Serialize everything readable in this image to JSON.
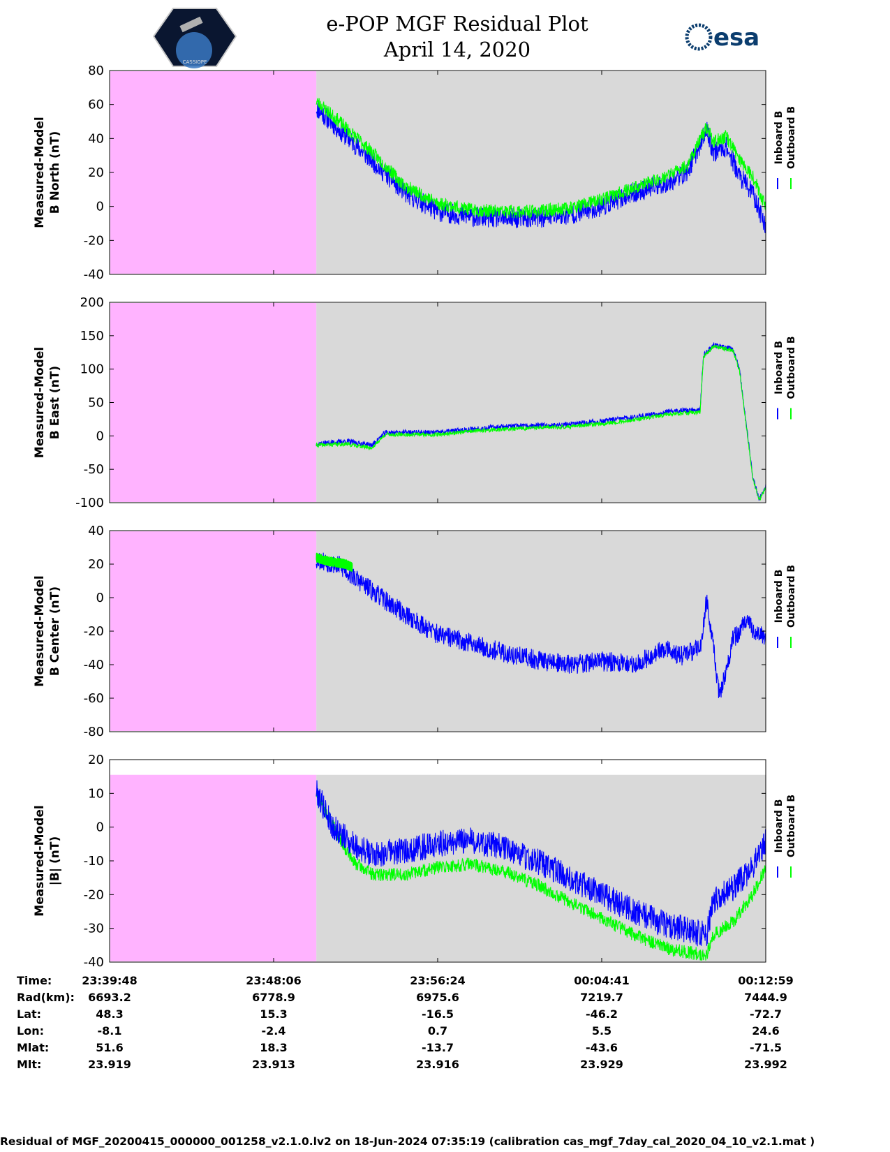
{
  "header": {
    "title_line1": "e-POP MGF Residual Plot",
    "title_line2": "April 14, 2020",
    "left_logo_text": "CASSIOPE",
    "right_logo_text": "esa"
  },
  "colors": {
    "inboard": "#0000ff",
    "outboard": "#00ff00",
    "no_data_fill": "#ffb3ff",
    "plot_bg": "#d9d9d9"
  },
  "legend": {
    "inboard": "Inboard B",
    "outboard": "Outboard B"
  },
  "chart_data": [
    {
      "type": "line",
      "ylabel": [
        "Measured-Model",
        "B North (nT)"
      ],
      "ylim": [
        -40,
        80
      ],
      "yticks": [
        80,
        60,
        40,
        20,
        0,
        -20,
        -40
      ],
      "data_start": 0.315,
      "series": [
        {
          "name": "Inboard B",
          "values": [
            [
              0.315,
              58
            ],
            [
              0.35,
              45
            ],
            [
              0.4,
              27
            ],
            [
              0.45,
              8
            ],
            [
              0.5,
              -3
            ],
            [
              0.55,
              -6
            ],
            [
              0.6,
              -7
            ],
            [
              0.65,
              -7
            ],
            [
              0.7,
              -5
            ],
            [
              0.75,
              0
            ],
            [
              0.8,
              8
            ],
            [
              0.85,
              14
            ],
            [
              0.88,
              20
            ],
            [
              0.91,
              45
            ],
            [
              0.92,
              32
            ],
            [
              0.94,
              35
            ],
            [
              0.96,
              18
            ],
            [
              0.98,
              8
            ],
            [
              1.0,
              -12
            ]
          ],
          "noise": 6,
          "seed": 11
        },
        {
          "name": "Outboard B",
          "values": [
            [
              0.315,
              62
            ],
            [
              0.35,
              50
            ],
            [
              0.4,
              32
            ],
            [
              0.45,
              12
            ],
            [
              0.5,
              2
            ],
            [
              0.55,
              -2
            ],
            [
              0.6,
              -3
            ],
            [
              0.65,
              -3
            ],
            [
              0.7,
              -1
            ],
            [
              0.75,
              4
            ],
            [
              0.8,
              11
            ],
            [
              0.85,
              18
            ],
            [
              0.88,
              24
            ],
            [
              0.91,
              47
            ],
            [
              0.92,
              38
            ],
            [
              0.94,
              41
            ],
            [
              0.96,
              28
            ],
            [
              0.98,
              18
            ],
            [
              1.0,
              0
            ]
          ],
          "noise": 4,
          "seed": 23
        }
      ]
    },
    {
      "type": "line",
      "ylabel": [
        "Measured-Model",
        "B East (nT)"
      ],
      "ylim": [
        -100,
        200
      ],
      "yticks": [
        200,
        150,
        100,
        50,
        0,
        -50,
        -100
      ],
      "data_start": 0.315,
      "series": [
        {
          "name": "Inboard B",
          "values": [
            [
              0.315,
              -12
            ],
            [
              0.36,
              -8
            ],
            [
              0.4,
              -14
            ],
            [
              0.42,
              5
            ],
            [
              0.5,
              5
            ],
            [
              0.55,
              10
            ],
            [
              0.6,
              14
            ],
            [
              0.65,
              15
            ],
            [
              0.7,
              17
            ],
            [
              0.75,
              22
            ],
            [
              0.8,
              28
            ],
            [
              0.85,
              36
            ],
            [
              0.9,
              40
            ],
            [
              0.905,
              120
            ],
            [
              0.92,
              136
            ],
            [
              0.95,
              130
            ],
            [
              0.96,
              100
            ],
            [
              0.98,
              -60
            ],
            [
              0.99,
              -95
            ],
            [
              1.0,
              -75
            ]
          ],
          "noise": 4,
          "seed": 37
        },
        {
          "name": "Outboard B",
          "values": [
            [
              0.315,
              -14
            ],
            [
              0.36,
              -12
            ],
            [
              0.4,
              -18
            ],
            [
              0.42,
              2
            ],
            [
              0.5,
              2
            ],
            [
              0.55,
              7
            ],
            [
              0.6,
              10
            ],
            [
              0.65,
              12
            ],
            [
              0.7,
              14
            ],
            [
              0.75,
              18
            ],
            [
              0.8,
              24
            ],
            [
              0.85,
              32
            ],
            [
              0.9,
              36
            ],
            [
              0.905,
              118
            ],
            [
              0.92,
              134
            ],
            [
              0.95,
              128
            ],
            [
              0.96,
              98
            ],
            [
              0.98,
              -62
            ],
            [
              0.99,
              -97
            ],
            [
              1.0,
              -78
            ]
          ],
          "noise": 3,
          "seed": 41
        }
      ]
    },
    {
      "type": "line",
      "ylabel": [
        "Measured-Model",
        "B Center (nT)"
      ],
      "ylim": [
        -80,
        40
      ],
      "yticks": [
        40,
        20,
        0,
        -20,
        -40,
        -60,
        -80
      ],
      "data_start": 0.315,
      "series": [
        {
          "name": "Inboard B",
          "values": [
            [
              0.315,
              23
            ],
            [
              0.35,
              19
            ],
            [
              0.4,
              4
            ],
            [
              0.45,
              -10
            ],
            [
              0.5,
              -22
            ],
            [
              0.55,
              -27
            ],
            [
              0.6,
              -33
            ],
            [
              0.65,
              -37
            ],
            [
              0.7,
              -40
            ],
            [
              0.75,
              -38
            ],
            [
              0.8,
              -40
            ],
            [
              0.85,
              -30
            ],
            [
              0.87,
              -35
            ],
            [
              0.9,
              -30
            ],
            [
              0.91,
              0
            ],
            [
              0.92,
              -30
            ],
            [
              0.93,
              -60
            ],
            [
              0.95,
              -25
            ],
            [
              0.97,
              -15
            ],
            [
              1.0,
              -25
            ]
          ],
          "noise": 6,
          "seed": 53
        },
        {
          "name": "Outboard B",
          "values": [
            [
              0.315,
              24
            ],
            [
              0.33,
              22
            ],
            [
              0.36,
              20
            ],
            [
              0.37,
              18
            ]
          ],
          "noise": 3,
          "seed": 59
        }
      ]
    },
    {
      "type": "line",
      "ylabel": [
        "Measured-Model",
        "|B| (nT)"
      ],
      "ylim": [
        -40,
        20
      ],
      "yticks": [
        20,
        10,
        0,
        -10,
        -20,
        -30,
        -40
      ],
      "data_start": 0.315,
      "series": [
        {
          "name": "Outboard B",
          "values": [
            [
              0.315,
              10
            ],
            [
              0.35,
              -3
            ],
            [
              0.37,
              -10
            ],
            [
              0.4,
              -14
            ],
            [
              0.45,
              -14
            ],
            [
              0.5,
              -12
            ],
            [
              0.55,
              -11
            ],
            [
              0.6,
              -13
            ],
            [
              0.65,
              -17
            ],
            [
              0.7,
              -22
            ],
            [
              0.75,
              -27
            ],
            [
              0.8,
              -32
            ],
            [
              0.85,
              -36
            ],
            [
              0.91,
              -38
            ],
            [
              0.92,
              -32
            ],
            [
              0.95,
              -28
            ],
            [
              0.98,
              -20
            ],
            [
              1.0,
              -12
            ]
          ],
          "noise": 2,
          "seed": 71
        },
        {
          "name": "Inboard B",
          "values": [
            [
              0.315,
              11
            ],
            [
              0.34,
              0
            ],
            [
              0.37,
              -5
            ],
            [
              0.4,
              -8
            ],
            [
              0.45,
              -7
            ],
            [
              0.5,
              -5
            ],
            [
              0.55,
              -4
            ],
            [
              0.6,
              -6
            ],
            [
              0.65,
              -10
            ],
            [
              0.7,
              -15
            ],
            [
              0.75,
              -20
            ],
            [
              0.8,
              -25
            ],
            [
              0.85,
              -29
            ],
            [
              0.91,
              -32
            ],
            [
              0.92,
              -22
            ],
            [
              0.95,
              -18
            ],
            [
              0.98,
              -12
            ],
            [
              1.0,
              -4
            ]
          ],
          "noise": 4,
          "seed": 79
        }
      ]
    }
  ],
  "info_table": {
    "labels": [
      "Time:",
      "Rad(km):",
      "Lat:",
      "Lon:",
      "Mlat:",
      "Mlt:"
    ],
    "columns": [
      [
        "23:39:48",
        "6693.2",
        "48.3",
        "-8.1",
        "51.6",
        "23.919"
      ],
      [
        "23:48:06",
        "6778.9",
        "15.3",
        "-2.4",
        "18.3",
        "23.913"
      ],
      [
        "23:56:24",
        "6975.6",
        "-16.5",
        "0.7",
        "-13.7",
        "23.916"
      ],
      [
        "00:04:41",
        "7219.7",
        "-46.2",
        "5.5",
        "-43.6",
        "23.929"
      ],
      [
        "00:12:59",
        "7444.9",
        "-72.7",
        "24.6",
        "-71.5",
        "23.992"
      ]
    ]
  },
  "footer": "Residual of MGF_20200415_000000_001258_v2.1.0.lv2 on 18-Jun-2024 07:35:19 (calibration cas_mgf_7day_cal_2020_04_10_v2.1.mat )"
}
